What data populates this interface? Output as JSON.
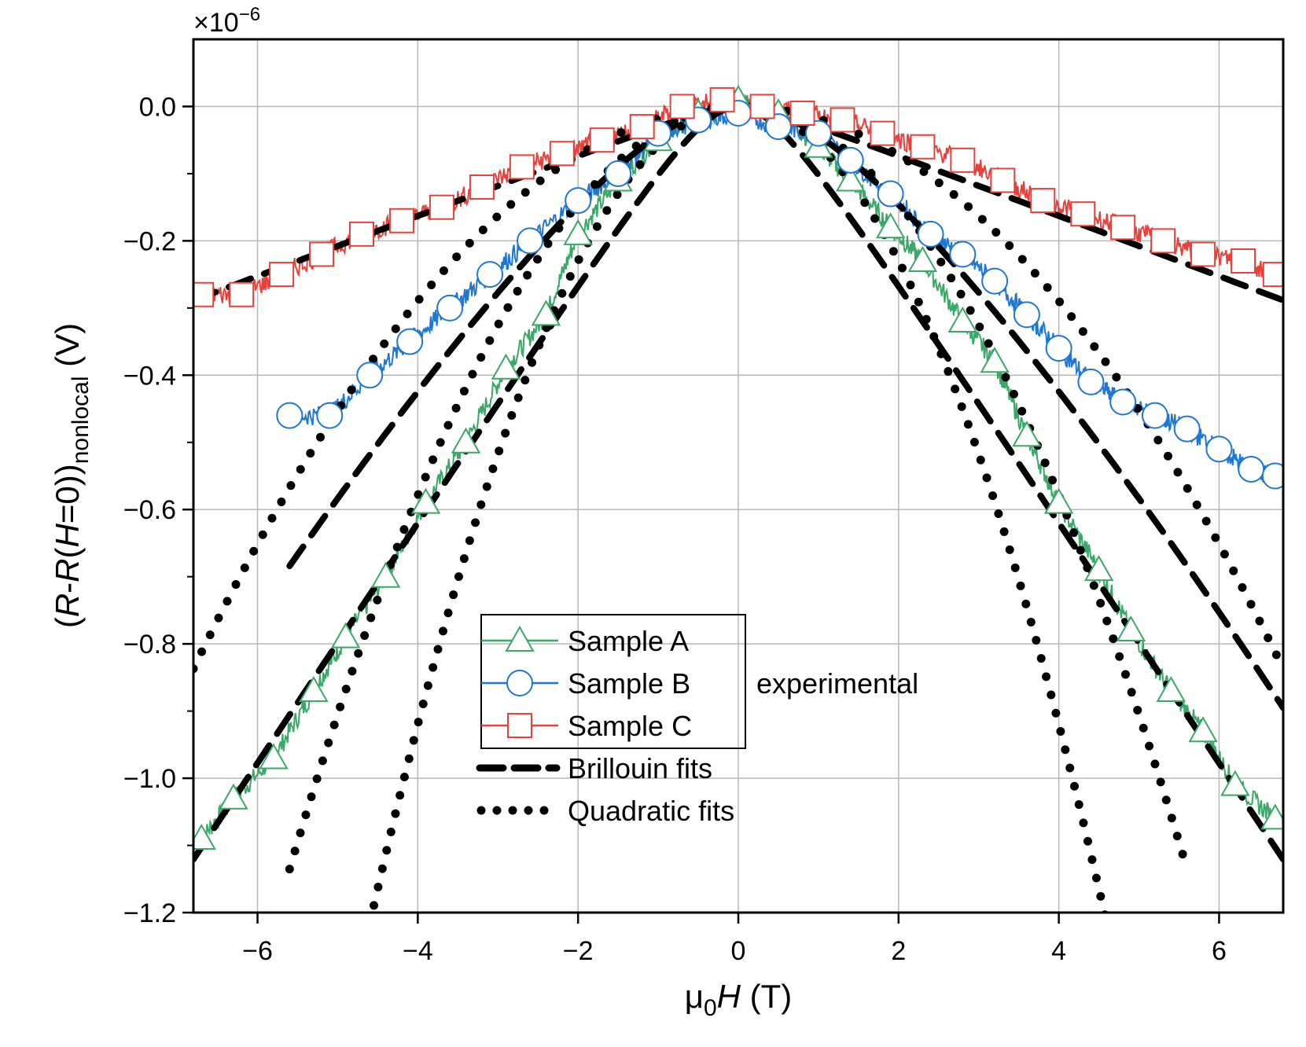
{
  "chart_data": {
    "type": "line",
    "xlabel": "μ0H (T)",
    "xlabel_parts": {
      "mu": "μ",
      "sub": "0",
      "H": "H",
      "unit": " (T)"
    },
    "ylabel": "(R-R(H=0))nonlocal (V)",
    "ylabel_parts": {
      "open": "(",
      "R1": "R",
      "dash": "-",
      "R2": "R",
      "paren": "(",
      "H": "H",
      "eq": "=0))",
      "sub": "nonlocal",
      "unit": " (V)"
    },
    "multiplier": "×10",
    "multiplier_exp": "−6",
    "xlim": [
      -6.8,
      6.8
    ],
    "ylim": [
      -1.2,
      0.1
    ],
    "x_ticks": [
      -6,
      -4,
      -2,
      0,
      2,
      4,
      6
    ],
    "x_tick_labels": [
      "−6",
      "−4",
      "−2",
      "0",
      "2",
      "4",
      "6"
    ],
    "y_ticks": [
      0.0,
      -0.2,
      -0.4,
      -0.6,
      -0.8,
      -1.0,
      -1.2
    ],
    "y_tick_labels": [
      "0.0",
      "−0.2",
      "−0.4",
      "−0.6",
      "−0.8",
      "−1.0",
      "−1.2"
    ],
    "grid": true,
    "legend_position": "bottom-center",
    "legend_note": "experimental",
    "series": [
      {
        "name": "Sample A",
        "kind": "experimental",
        "marker": "triangle",
        "color": "#3aa867",
        "x": [
          -6.7,
          -6.3,
          -5.8,
          -5.3,
          -4.9,
          -4.4,
          -3.9,
          -3.4,
          -2.9,
          -2.4,
          -2.0,
          -1.5,
          -1.0,
          -0.5,
          0.0,
          0.5,
          1.0,
          1.4,
          1.9,
          2.3,
          2.8,
          3.2,
          3.6,
          4.0,
          4.5,
          4.9,
          5.4,
          5.8,
          6.2,
          6.7
        ],
        "y": [
          -1.09,
          -1.03,
          -0.97,
          -0.87,
          -0.79,
          -0.7,
          -0.59,
          -0.5,
          -0.39,
          -0.31,
          -0.19,
          -0.11,
          -0.05,
          -0.01,
          0.01,
          -0.01,
          -0.06,
          -0.11,
          -0.18,
          -0.23,
          -0.32,
          -0.38,
          -0.49,
          -0.59,
          -0.69,
          -0.78,
          -0.87,
          -0.93,
          -1.01,
          -1.06
        ]
      },
      {
        "name": "Sample B",
        "kind": "experimental",
        "marker": "circle",
        "color": "#1f77d4",
        "x": [
          -5.6,
          -5.1,
          -4.6,
          -4.1,
          -3.6,
          -3.1,
          -2.6,
          -2.0,
          -1.5,
          -1.0,
          -0.5,
          0.0,
          0.5,
          1.0,
          1.4,
          1.9,
          2.4,
          2.8,
          3.2,
          3.6,
          4.0,
          4.4,
          4.8,
          5.2,
          5.6,
          6.0,
          6.4,
          6.7
        ],
        "y": [
          -0.46,
          -0.46,
          -0.4,
          -0.35,
          -0.3,
          -0.25,
          -0.2,
          -0.14,
          -0.1,
          -0.04,
          -0.02,
          -0.01,
          -0.03,
          -0.04,
          -0.08,
          -0.13,
          -0.19,
          -0.22,
          -0.26,
          -0.31,
          -0.36,
          -0.41,
          -0.44,
          -0.46,
          -0.48,
          -0.51,
          -0.54,
          -0.55
        ]
      },
      {
        "name": "Sample C",
        "kind": "experimental",
        "marker": "square",
        "color": "#e8403a",
        "x": [
          -6.7,
          -6.2,
          -5.7,
          -5.2,
          -4.7,
          -4.2,
          -3.7,
          -3.2,
          -2.7,
          -2.2,
          -1.7,
          -1.2,
          -0.7,
          -0.2,
          0.3,
          0.8,
          1.3,
          1.8,
          2.3,
          2.8,
          3.3,
          3.8,
          4.3,
          4.8,
          5.3,
          5.8,
          6.3,
          6.7
        ],
        "y": [
          -0.28,
          -0.28,
          -0.25,
          -0.22,
          -0.19,
          -0.17,
          -0.15,
          -0.12,
          -0.09,
          -0.07,
          -0.05,
          -0.03,
          0.0,
          0.01,
          0.0,
          -0.01,
          -0.02,
          -0.04,
          -0.06,
          -0.08,
          -0.11,
          -0.14,
          -0.16,
          -0.18,
          -0.2,
          -0.22,
          -0.23,
          -0.25
        ]
      }
    ],
    "fits": [
      {
        "name": "Brillouin fits",
        "style": "dashed",
        "color": "#000000",
        "sample": "Sample A",
        "y0": 0.0,
        "slope": 0.18,
        "x0": 0.6,
        "xrange": [
          -6.8,
          6.8
        ]
      },
      {
        "name": "Brillouin fits",
        "style": "dashed",
        "color": "#000000",
        "sample": "Sample B",
        "y0": 0.0,
        "slope": 0.13,
        "x0": 1.5,
        "xrange": [
          -5.6,
          6.8
        ],
        "curv": 0.004
      },
      {
        "name": "Brillouin fits",
        "style": "dashed",
        "color": "#000000",
        "sample": "Sample C",
        "y0": 0.0,
        "slope": 0.045,
        "x0": 0.4,
        "xrange": [
          -6.8,
          6.8
        ]
      },
      {
        "name": "Quadratic fits",
        "style": "dotted",
        "color": "#000000",
        "sample": "Sample A",
        "a": -0.0575,
        "xrange": [
          -4.6,
          4.6
        ]
      },
      {
        "name": "Quadratic fits",
        "style": "dotted",
        "color": "#000000",
        "sample": "Sample B",
        "a": -0.0362,
        "xrange": [
          -5.6,
          5.6
        ]
      },
      {
        "name": "Quadratic fits",
        "style": "dotted",
        "color": "#000000",
        "sample": "Sample C",
        "a": -0.0181,
        "xrange": [
          -6.8,
          6.8
        ]
      }
    ],
    "legend": [
      {
        "label": "Sample A",
        "marker": "triangle",
        "color": "#3aa867"
      },
      {
        "label": "Sample B",
        "marker": "circle",
        "color": "#1f77d4"
      },
      {
        "label": "Sample C",
        "marker": "square",
        "color": "#e8403a"
      },
      {
        "label": "Brillouin fits",
        "marker": "dashed",
        "color": "#000000"
      },
      {
        "label": "Quadratic fits",
        "marker": "dotted",
        "color": "#000000"
      }
    ]
  }
}
